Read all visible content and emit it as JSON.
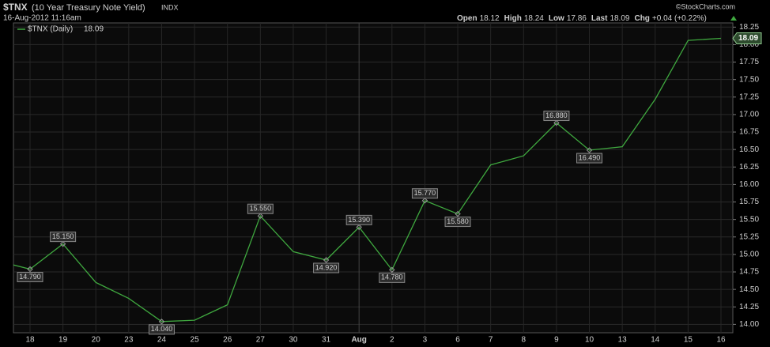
{
  "chart_data": {
    "type": "line",
    "symbol": "$TNX",
    "title": "(10 Year Treasury Note Yield)",
    "exchange": "INDX",
    "date": "16-Aug-2012 11:16am",
    "credit": "©StockCharts.com",
    "stats": [
      {
        "name": "Open",
        "value": "18.12"
      },
      {
        "name": "High",
        "value": "18.24"
      },
      {
        "name": "Low",
        "value": "17.86"
      },
      {
        "name": "Last",
        "value": "18.09"
      },
      {
        "name": "Chg",
        "value": "+0.04 (+0.22%)"
      }
    ],
    "categories": [
      null,
      "18",
      "19",
      "20",
      "23",
      "24",
      "25",
      "26",
      "27",
      "30",
      "31",
      "Aug",
      "2",
      "3",
      "6",
      "7",
      "8",
      "9",
      "10",
      "13",
      "14",
      "15",
      "16"
    ],
    "series": [
      {
        "name": "$TNX (Daily)",
        "color": "#3fa83f",
        "values": [
          14.91,
          14.79,
          15.15,
          14.6,
          14.37,
          14.04,
          14.06,
          14.28,
          15.55,
          15.04,
          14.92,
          15.39,
          14.78,
          15.77,
          15.58,
          16.28,
          16.41,
          16.88,
          16.49,
          16.54,
          17.22,
          18.06,
          18.09
        ],
        "value_labels": [
          null,
          "14.790",
          "15.150",
          null,
          null,
          "14.040",
          null,
          null,
          "15.550",
          null,
          "14.920",
          "15.390",
          "14.780",
          "15.770",
          "15.580",
          null,
          null,
          "16.880",
          "16.490",
          null,
          null,
          null,
          null
        ]
      }
    ],
    "ylim": [
      13.88,
      18.31
    ],
    "yticks": [
      {
        "value": 14,
        "label": "14.00"
      },
      {
        "value": 14.25,
        "label": "14.25"
      },
      {
        "value": 14.5,
        "label": "14.50"
      },
      {
        "value": 14.75,
        "label": "14.75"
      },
      {
        "value": 15,
        "label": "15.00"
      },
      {
        "value": 15.25,
        "label": "15.25"
      },
      {
        "value": 15.5,
        "label": "15.50"
      },
      {
        "value": 15.75,
        "label": "15.75"
      },
      {
        "value": 16,
        "label": "16.00"
      },
      {
        "value": 16.25,
        "label": "16.25"
      },
      {
        "value": 16.5,
        "label": "16.50"
      },
      {
        "value": 16.75,
        "label": "16.75"
      },
      {
        "value": 17,
        "label": "17.00"
      },
      {
        "value": 17.25,
        "label": "17.25"
      },
      {
        "value": 17.5,
        "label": "17.50"
      },
      {
        "value": 17.75,
        "label": "17.75"
      },
      {
        "value": 18,
        "label": "18.00"
      },
      {
        "value": 18.25,
        "label": "18.25"
      }
    ],
    "grid": true
  }
}
